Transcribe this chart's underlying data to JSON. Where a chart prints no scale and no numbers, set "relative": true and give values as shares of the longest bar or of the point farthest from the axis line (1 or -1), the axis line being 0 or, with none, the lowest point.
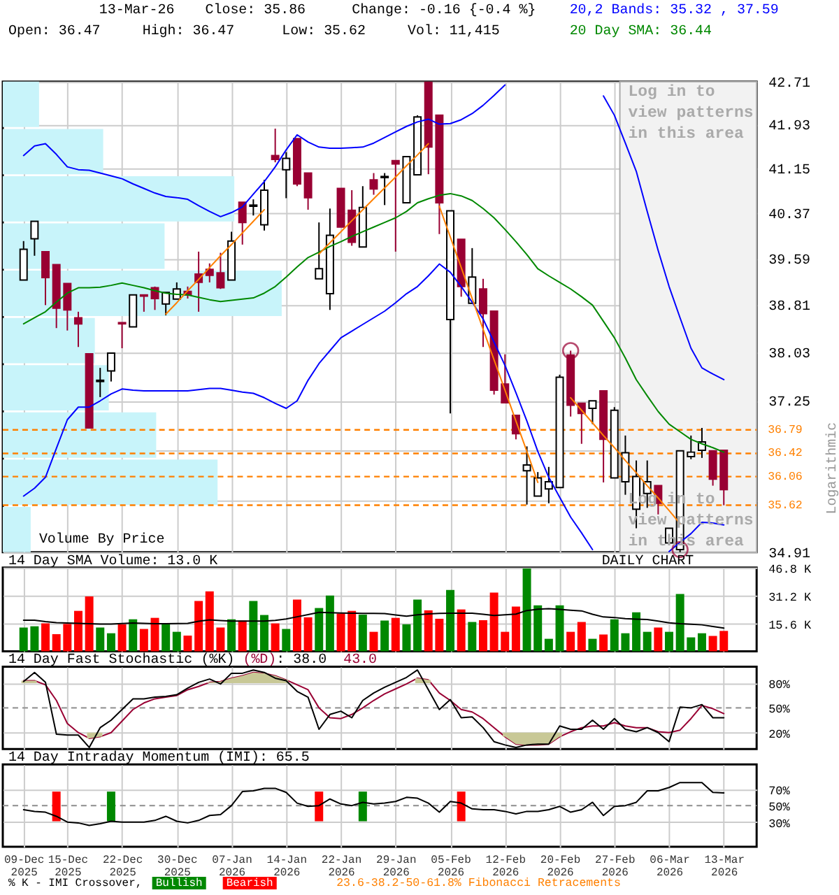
{
  "chart_data": [
    {
      "type": "candlestick",
      "title": "13-Mar-26",
      "ylabel": "Logarithmic",
      "categories": [
        "09-Dec 2025",
        null,
        null,
        null,
        "15-Dec 2025",
        null,
        null,
        null,
        null,
        "22-Dec 2025",
        null,
        null,
        null,
        null,
        "30-Dec 2025",
        null,
        null,
        null,
        null,
        "07-Jan 2026",
        null,
        null,
        null,
        null,
        "14-Jan 2026",
        null,
        null,
        null,
        null,
        "22-Jan 2026",
        null,
        null,
        null,
        null,
        "29-Jan 2026",
        null,
        null,
        null,
        null,
        "05-Feb 2026",
        null,
        null,
        null,
        null,
        "12-Feb 2026",
        null,
        null,
        null,
        null,
        "20-Feb 2026",
        null,
        null,
        null,
        null,
        "27-Feb 2026",
        null,
        null,
        null,
        null,
        "06-Mar 2026",
        null,
        null,
        null,
        null,
        "13-Mar 2026"
      ],
      "ohlc": [
        [
          39.23,
          39.89,
          39.23,
          39.75
        ],
        [
          39.93,
          40.23,
          39.64,
          40.23
        ],
        [
          39.71,
          39.71,
          38.81,
          39.27
        ],
        [
          39.49,
          39.49,
          38.43,
          38.76
        ],
        [
          39.17,
          39.17,
          38.39,
          38.73
        ],
        [
          38.6,
          38.7,
          38.12,
          38.5
        ],
        [
          38.01,
          38.01,
          36.82,
          36.82
        ],
        [
          37.56,
          37.78,
          37.31,
          37.58
        ],
        [
          37.73,
          38.02,
          37.56,
          38.02
        ],
        [
          38.52,
          38.52,
          38.1,
          38.5
        ],
        [
          38.45,
          38.98,
          38.45,
          38.98
        ],
        [
          38.98,
          38.98,
          38.7,
          38.96
        ],
        [
          39.1,
          39.12,
          38.73,
          38.92
        ],
        [
          38.83,
          39.02,
          38.64,
          39.02
        ],
        [
          38.91,
          39.19,
          38.91,
          39.08
        ],
        [
          39.04,
          39.12,
          38.92,
          38.98
        ],
        [
          39.33,
          39.71,
          38.7,
          39.19
        ],
        [
          39.41,
          39.51,
          39.19,
          39.31
        ],
        [
          39.35,
          39.69,
          39.08,
          39.1
        ],
        [
          39.23,
          40.05,
          39.23,
          39.89
        ],
        [
          40.56,
          40.56,
          39.83,
          40.21
        ],
        [
          40.49,
          40.61,
          40.33,
          40.51
        ],
        [
          40.17,
          40.95,
          40.07,
          40.77
        ],
        [
          41.38,
          41.86,
          41.26,
          41.31
        ],
        [
          41.13,
          41.44,
          40.63,
          41.33
        ],
        [
          41.68,
          41.68,
          40.84,
          40.88
        ],
        [
          41.07,
          41.07,
          40.43,
          40.64
        ],
        [
          39.25,
          40.21,
          39.25,
          39.42
        ],
        [
          39.0,
          40.45,
          38.73,
          39.99
        ],
        [
          40.8,
          40.8,
          40.13,
          40.13
        ],
        [
          40.42,
          40.77,
          39.81,
          39.87
        ],
        [
          39.79,
          40.84,
          39.79,
          40.47
        ],
        [
          40.95,
          41.07,
          40.69,
          40.79
        ],
        [
          40.99,
          41.07,
          40.51,
          41.01
        ],
        [
          41.29,
          41.29,
          39.71,
          41.23
        ],
        [
          40.55,
          41.36,
          40.55,
          41.36
        ],
        [
          41.04,
          42.1,
          41.04,
          42.07
        ],
        [
          42.7,
          42.71,
          41.05,
          41.53
        ],
        [
          42.1,
          42.1,
          40.01,
          40.55
        ],
        [
          38.57,
          40.41,
          37.05,
          40.41
        ],
        [
          39.92,
          39.92,
          38.95,
          39.12
        ],
        [
          38.84,
          39.77,
          38.84,
          39.28
        ],
        [
          39.08,
          39.25,
          38.12,
          38.67
        ],
        [
          38.71,
          38.71,
          37.35,
          37.42
        ],
        [
          37.52,
          38.0,
          37.21,
          37.22
        ],
        [
          37.02,
          37.02,
          36.64,
          36.73
        ],
        [
          36.15,
          36.53,
          35.63,
          36.24
        ],
        [
          35.76,
          36.13,
          35.76,
          36.04
        ],
        [
          35.87,
          36.21,
          35.65,
          35.98
        ],
        [
          35.89,
          37.67,
          35.89,
          37.63
        ],
        [
          37.99,
          38.06,
          37.0,
          37.18
        ],
        [
          37.21,
          37.21,
          36.57,
          37.05
        ],
        [
          37.13,
          37.25,
          36.88,
          37.25
        ],
        [
          37.41,
          37.41,
          35.97,
          36.64
        ],
        [
          36.04,
          37.15,
          36.04,
          37.1
        ],
        [
          35.98,
          36.7,
          35.78,
          36.43
        ],
        [
          35.56,
          36.31,
          35.27,
          36.06
        ],
        [
          35.8,
          36.31,
          35.58,
          35.98
        ],
        [
          35.92,
          35.92,
          35.48,
          35.65
        ],
        [
          35.05,
          35.27,
          35.05,
          35.27
        ],
        [
          34.95,
          36.46,
          34.91,
          36.46
        ],
        [
          36.37,
          36.7,
          36.33,
          36.44
        ],
        [
          36.47,
          36.82,
          36.35,
          36.6
        ],
        [
          36.46,
          36.46,
          35.92,
          36.02
        ],
        [
          36.47,
          36.47,
          35.62,
          35.86
        ]
      ],
      "colors": [
        "#ffffff",
        "#ffffff",
        "#990033",
        "#990033",
        "#990033",
        "#990033",
        "#990033",
        "#ffffff",
        "#ffffff",
        "#990033",
        "#ffffff",
        "#990033",
        "#990033",
        "#ffffff",
        "#ffffff",
        "#990033",
        "#990033",
        "#990033",
        "#990033",
        "#ffffff",
        "#990033",
        "#ffffff",
        "#ffffff",
        "#990033",
        "#ffffff",
        "#990033",
        "#990033",
        "#ffffff",
        "#ffffff",
        "#990033",
        "#990033",
        "#ffffff",
        "#990033",
        "#ffffff",
        "#990033",
        "#ffffff",
        "#ffffff",
        "#990033",
        "#990033",
        "#ffffff",
        "#990033",
        "#ffffff",
        "#990033",
        "#990033",
        "#990033",
        "#990033",
        "#ffffff",
        "#ffffff",
        "#ffffff",
        "#ffffff",
        "#990033",
        "#990033",
        "#ffffff",
        "#990033",
        "#ffffff",
        "#ffffff",
        "#ffffff",
        "#ffffff",
        "#990033",
        "#ffffff",
        "#ffffff",
        "#ffffff",
        "#ffffff",
        "#990033",
        "#990033"
      ],
      "series": [
        {
          "name": "20,2 Bands: 35.32 , 37.59",
          "type": "line",
          "color": "#0000ff",
          "values": [
            41.38,
            41.55,
            41.59,
            41.4,
            41.18,
            41.13,
            41.12,
            41.07,
            41.02,
            40.97,
            40.88,
            40.8,
            40.72,
            40.66,
            40.64,
            40.61,
            40.5,
            40.4,
            40.31,
            40.38,
            40.48,
            40.7,
            40.92,
            41.18,
            41.48,
            41.75,
            41.62,
            41.53,
            41.51,
            41.51,
            41.52,
            41.53,
            41.6,
            41.7,
            41.8,
            41.9,
            41.98,
            42.03,
            41.94,
            41.95,
            42.02,
            42.13,
            42.28,
            42.46,
            42.65,
            null,
            null,
            null,
            null,
            null,
            null,
            null,
            null,
            42.45,
            42.1,
            41.6,
            41.1,
            40.4,
            39.73,
            39.12,
            38.6,
            38.1,
            37.78,
            37.68,
            37.59
          ]
        },
        {
          "type": "line",
          "color": "#0000ff",
          "values": [
            35.76,
            35.88,
            36.05,
            36.5,
            36.95,
            37.15,
            37.15,
            37.25,
            37.36,
            37.44,
            37.42,
            37.41,
            37.41,
            37.41,
            37.41,
            37.41,
            37.43,
            37.45,
            37.45,
            37.42,
            37.39,
            37.37,
            37.3,
            37.21,
            37.13,
            37.25,
            37.58,
            37.85,
            38.06,
            38.27,
            38.38,
            38.49,
            38.6,
            38.71,
            38.85,
            39.0,
            39.12,
            39.3,
            39.5,
            39.36,
            39.12,
            38.86,
            38.58,
            38.2,
            37.82,
            37.38,
            36.93,
            36.45,
            36.05,
            35.74,
            35.44,
            35.2,
            34.95,
            null,
            null,
            null,
            null,
            null,
            null,
            34.92,
            35.06,
            35.19,
            35.36,
            35.35,
            35.32
          ]
        },
        {
          "name": "20 Day SMA: 36.44",
          "type": "line",
          "color": "#008800",
          "values": [
            38.5,
            38.6,
            38.7,
            38.86,
            39.01,
            39.1,
            39.1,
            39.11,
            39.14,
            39.18,
            39.14,
            39.1,
            39.05,
            39.01,
            38.99,
            38.98,
            38.94,
            38.9,
            38.87,
            38.89,
            38.91,
            38.93,
            39.01,
            39.12,
            39.28,
            39.45,
            39.61,
            39.7,
            39.8,
            39.88,
            39.97,
            40.05,
            40.13,
            40.21,
            40.29,
            40.4,
            40.55,
            40.62,
            40.68,
            40.71,
            40.67,
            40.59,
            40.45,
            40.29,
            40.09,
            39.88,
            39.66,
            39.42,
            39.3,
            39.19,
            39.08,
            38.95,
            38.81,
            38.54,
            38.27,
            37.94,
            37.59,
            37.33,
            37.08,
            36.88,
            36.76,
            36.64,
            36.57,
            36.51,
            36.44
          ]
        },
        {
          "type": "line",
          "color": "#ff8000",
          "values": [
            null,
            null,
            null,
            null,
            null,
            null,
            null,
            null,
            null,
            null,
            null,
            null,
            null,
            38.66,
            38.85,
            39.05,
            39.24,
            39.44,
            39.64,
            39.83,
            40.03,
            40.23,
            40.43,
            null,
            null,
            null,
            null,
            null,
            null,
            null,
            null,
            null,
            null,
            null,
            null,
            null,
            null,
            null,
            40.49,
            39.96,
            39.44,
            38.92,
            38.41,
            37.91,
            37.42,
            36.93,
            36.45,
            35.97,
            null,
            null,
            null,
            null,
            null,
            null,
            null,
            null,
            null,
            null,
            null,
            null,
            null,
            null,
            null,
            null,
            null
          ]
        },
        {
          "type": "line",
          "color": "#ff8000",
          "values": [
            null,
            null,
            null,
            null,
            null,
            null,
            null,
            null,
            null,
            null,
            null,
            null,
            null,
            null,
            null,
            null,
            null,
            null,
            null,
            null,
            null,
            null,
            null,
            null,
            null,
            null,
            null,
            39.67,
            39.86,
            40.05,
            40.24,
            40.43,
            40.62,
            40.81,
            41.0,
            41.2,
            41.39,
            41.59,
            null,
            null,
            null,
            null,
            null,
            null,
            null,
            null,
            null,
            null,
            null,
            null,
            37.3,
            37.1,
            36.9,
            36.7,
            36.51,
            36.31,
            36.12,
            35.92,
            35.73,
            35.54,
            35.34,
            null,
            null,
            null,
            null
          ]
        },
        {
          "type": "scatter",
          "marker": "circle",
          "color": "#990033",
          "values": [
            null,
            null,
            null,
            null,
            null,
            null,
            null,
            null,
            null,
            null,
            null,
            null,
            null,
            null,
            null,
            null,
            null,
            null,
            null,
            null,
            null,
            null,
            null,
            null,
            null,
            null,
            null,
            null,
            null,
            null,
            null,
            null,
            null,
            null,
            null,
            null,
            null,
            null,
            null,
            null,
            null,
            null,
            null,
            null,
            null,
            null,
            null,
            null,
            null,
            null,
            38.06,
            null,
            null,
            null,
            null,
            null,
            null,
            null,
            null,
            null,
            34.95,
            null,
            null,
            null,
            null
          ]
        }
      ],
      "ylim": [
        34.91,
        42.71
      ],
      "yticks": [
        34.91,
        {
          "value": 35.69,
          "label": null
        },
        {
          "value": 36.47,
          "label": null
        },
        37.25,
        38.03,
        38.81,
        39.59,
        40.37,
        41.15,
        41.93,
        42.71
      ],
      "log": true,
      "grid": true,
      "legend": "top right",
      "tick_labels": "y",
      "ref_lines": [
        {
          "axis": "y",
          "value": 36.79,
          "label": "36.79",
          "color": "#ff8000",
          "line_style": "dashed"
        },
        {
          "axis": "y",
          "value": 36.42,
          "label": "36.42",
          "color": "#ff8000",
          "line_style": "dashed"
        },
        {
          "axis": "y",
          "value": 36.06,
          "label": "36.06",
          "color": "#ff8000",
          "line_style": "dashed"
        },
        {
          "axis": "y",
          "value": 35.62,
          "label": "35.62",
          "color": "#ff8000",
          "line_style": "dashed"
        }
      ],
      "bands": [
        {
          "axis": "x",
          "from": "27-Feb 2026",
          "to": "13-Mar 2026",
          "label": "Log in to view patterns in this area",
          "color": "#f2f2f2"
        }
      ],
      "annotations": [
        "Close: 35.86",
        "Change: -0.16 {-0.4 %}",
        "Open: 36.47",
        "High: 36.47",
        "Low: 35.62",
        "Vol: 11,415",
        "Log in to view patterns in this area",
        "DAILY CHART",
        "23.6-38.2-50-61.8% Fibonacci Retracements"
      ]
    },
    {
      "type": "bar",
      "orientation": "horizontal",
      "relative": true,
      "title": "Volume By Price",
      "tick_labels": false,
      "categories": [
        null,
        null,
        null,
        null,
        null,
        null,
        null,
        null,
        null,
        null
      ],
      "values": [
        0.13,
        0.36,
        0.83,
        0.58,
        1,
        0.33,
        0.38,
        0.55,
        0.77,
        0.1
      ],
      "color": "#c8f4fa"
    },
    {
      "type": "bar",
      "title": "14 Day SMA Volume: 13.0 K",
      "categories": [
        "09-Dec 2025",
        null,
        null,
        null,
        "15-Dec 2025",
        null,
        null,
        null,
        null,
        "22-Dec 2025",
        null,
        null,
        null,
        null,
        "30-Dec 2025",
        null,
        null,
        null,
        null,
        "07-Jan 2026",
        null,
        null,
        null,
        null,
        "14-Jan 2026",
        null,
        null,
        null,
        null,
        "22-Jan 2026",
        null,
        null,
        null,
        null,
        "29-Jan 2026",
        null,
        null,
        null,
        null,
        "05-Feb 2026",
        null,
        null,
        null,
        null,
        "12-Feb 2026",
        null,
        null,
        null,
        null,
        "20-Feb 2026",
        null,
        null,
        null,
        null,
        "27-Feb 2026",
        null,
        null,
        null,
        null,
        "06-Mar 2026",
        null,
        null,
        null,
        null,
        "13-Mar 2026"
      ],
      "series": [
        {
          "type": "bar",
          "colors": [
            "#008800",
            "#008800",
            "#ff0000",
            "#ff0000",
            "#ff0000",
            "#ff0000",
            "#ff0000",
            "#008800",
            "#008800",
            "#ff0000",
            "#008800",
            "#ff0000",
            "#ff0000",
            "#008800",
            "#008800",
            "#ff0000",
            "#ff0000",
            "#ff0000",
            "#ff0000",
            "#008800",
            "#ff0000",
            "#008800",
            "#008800",
            "#ff0000",
            "#008800",
            "#ff0000",
            "#ff0000",
            "#008800",
            "#008800",
            "#ff0000",
            "#ff0000",
            "#008800",
            "#ff0000",
            "#008800",
            "#ff0000",
            "#008800",
            "#008800",
            "#ff0000",
            "#ff0000",
            "#008800",
            "#ff0000",
            "#008800",
            "#ff0000",
            "#ff0000",
            "#ff0000",
            "#ff0000",
            "#008800",
            "#008800",
            "#008800",
            "#008800",
            "#ff0000",
            "#ff0000",
            "#008800",
            "#ff0000",
            "#008800",
            "#008800",
            "#008800",
            "#008800",
            "#ff0000",
            "#008800",
            "#008800",
            "#008800",
            "#008800",
            "#ff0000",
            "#ff0000"
          ],
          "values": [
            13.3,
            14.0,
            15.6,
            9.6,
            15.3,
            22.6,
            30.7,
            13.3,
            10.1,
            15.1,
            17.9,
            12.5,
            18.7,
            15.3,
            10.9,
            8.8,
            28.1,
            33.5,
            13.3,
            17.9,
            17.2,
            28.1,
            20.3,
            15.6,
            12.5,
            28.9,
            19.0,
            24.2,
            31.2,
            21.1,
            22.6,
            20.5,
            10.9,
            17.2,
            18.7,
            15.1,
            28.9,
            22.9,
            18.2,
            34.3,
            23.4,
            16.4,
            17.4,
            32.8,
            10.9,
            25.0,
            46.3,
            25.7,
            7.0,
            25.7,
            10.9,
            16.4,
            7.0,
            9.4,
            17.9,
            10.1,
            21.8,
            10.9,
            13.3,
            10.9,
            32.0,
            7.8,
            10.1,
            8.6,
            11.4
          ]
        },
        {
          "type": "line",
          "color": "#000000",
          "values": [
            17.4,
            17.4,
            16.6,
            16.0,
            15.8,
            15.6,
            15.4,
            15.2,
            15.2,
            15.5,
            15.8,
            15.6,
            15.4,
            15.4,
            15.5,
            15.6,
            16.8,
            17.6,
            17.2,
            16.9,
            16.9,
            16.9,
            16.9,
            17.3,
            18.1,
            19.3,
            20.5,
            21.8,
            21.6,
            21.4,
            21.3,
            21.2,
            21.2,
            21.1,
            20.3,
            19.6,
            20.4,
            20.9,
            21.2,
            21.3,
            21.3,
            21.3,
            20.7,
            20.0,
            20.4,
            20.8,
            22.8,
            23.5,
            23.8,
            23.4,
            23.0,
            22.6,
            20.7,
            19.2,
            18.9,
            18.3,
            18.0,
            17.8,
            16.9,
            15.9,
            15.4,
            15.1,
            14.8,
            13.9,
            13.0
          ]
        }
      ],
      "ylim": [
        0,
        46.8
      ],
      "yticks": [
        {
          "value": 15.6,
          "label": "15.6 K"
        },
        {
          "value": 31.2,
          "label": "31.2 K"
        },
        {
          "value": 46.8,
          "label": "46.8 K"
        }
      ],
      "grid": true,
      "tick_labels": "y"
    },
    {
      "type": "line",
      "title": "14 Day Fast Stochastic",
      "categories": [
        "09-Dec 2025",
        null,
        null,
        null,
        "15-Dec 2025",
        null,
        null,
        null,
        null,
        "22-Dec 2025",
        null,
        null,
        null,
        null,
        "30-Dec 2025",
        null,
        null,
        null,
        null,
        "07-Jan 2026",
        null,
        null,
        null,
        null,
        "14-Jan 2026",
        null,
        null,
        null,
        null,
        "22-Jan 2026",
        null,
        null,
        null,
        null,
        "29-Jan 2026",
        null,
        null,
        null,
        null,
        "05-Feb 2026",
        null,
        null,
        null,
        null,
        "12-Feb 2026",
        null,
        null,
        null,
        null,
        "20-Feb 2026",
        null,
        null,
        null,
        null,
        "27-Feb 2026",
        null,
        null,
        null,
        null,
        "06-Mar 2026",
        null,
        null,
        null,
        null,
        "13-Mar 2026"
      ],
      "series": [
        {
          "name": "(%K)",
          "type": "line",
          "color": "#000000",
          "values": [
            82,
            93,
            81,
            18,
            17,
            17,
            2,
            26,
            35,
            48,
            61,
            61,
            63,
            64,
            66,
            74,
            81,
            85,
            79,
            92,
            92,
            96,
            93,
            86,
            83,
            70,
            63,
            24,
            42,
            46,
            38,
            59,
            68,
            75,
            81,
            87,
            96,
            72,
            48,
            60,
            38,
            39,
            26,
            9,
            5,
            2,
            5,
            6,
            6,
            28,
            24,
            24,
            35,
            24,
            37,
            24,
            21,
            26,
            20,
            9,
            51,
            50,
            54,
            38,
            38
          ]
        },
        {
          "name": "(%D)",
          "type": "line",
          "color": "#990033",
          "values": [
            83,
            83,
            78,
            59,
            31,
            20,
            13,
            15,
            20,
            34,
            48,
            56,
            61,
            63,
            65,
            72,
            76,
            81,
            82,
            86,
            89,
            93,
            92,
            89,
            84,
            78,
            72,
            50,
            38,
            37,
            42,
            50,
            59,
            67,
            73,
            79,
            86,
            84,
            68,
            59,
            48,
            45,
            37,
            26,
            15,
            6,
            5,
            5,
            6,
            15,
            21,
            26,
            28,
            28,
            32,
            28,
            26,
            26,
            21,
            20,
            23,
            37,
            53,
            49,
            43
          ],
          "lower": [
            80,
            80,
            null,
            null,
            null,
            null,
            13,
            15,
            null,
            null,
            null,
            null,
            null,
            null,
            null,
            null,
            null,
            80,
            80,
            80,
            80,
            80,
            80,
            80,
            80,
            null,
            null,
            null,
            null,
            null,
            null,
            null,
            null,
            null,
            null,
            null,
            80,
            80,
            null,
            null,
            null,
            null,
            null,
            null,
            15,
            6,
            5,
            5,
            6,
            15,
            null,
            null,
            null,
            null,
            null,
            null,
            null,
            null,
            null,
            null,
            null,
            null,
            null,
            null,
            null
          ],
          "upper": [
            83,
            83,
            null,
            null,
            null,
            null,
            20,
            20,
            null,
            null,
            null,
            null,
            null,
            null,
            null,
            null,
            null,
            81,
            82,
            86,
            89,
            93,
            92,
            89,
            84,
            null,
            null,
            null,
            null,
            null,
            null,
            null,
            null,
            null,
            null,
            null,
            86,
            84,
            null,
            null,
            null,
            null,
            null,
            null,
            20,
            20,
            20,
            20,
            20,
            20,
            null,
            null,
            null,
            null,
            null,
            null,
            null,
            null,
            null,
            null,
            null,
            null,
            null,
            null,
            null
          ]
        }
      ],
      "annotations": [
        ": 38.0",
        "43.0"
      ],
      "ylim": [
        0,
        100
      ],
      "yticks": [
        {
          "value": 20,
          "label": "20%"
        },
        {
          "value": 50,
          "label": "50%"
        },
        {
          "value": 80,
          "label": "80%"
        }
      ],
      "ref_lines": [
        {
          "axis": "y",
          "value": 50,
          "color": "#999999",
          "line_style": "dashed"
        }
      ],
      "grid": true,
      "legend": "top left",
      "tick_labels": "y"
    },
    {
      "type": "line",
      "title": "14 Day Intraday Momentum (IMI): 65.5",
      "categories": [
        "09-Dec 2025",
        null,
        null,
        null,
        "15-Dec 2025",
        null,
        null,
        null,
        null,
        "22-Dec 2025",
        null,
        null,
        null,
        null,
        "30-Dec 2025",
        null,
        null,
        null,
        null,
        "07-Jan 2026",
        null,
        null,
        null,
        null,
        "14-Jan 2026",
        null,
        null,
        null,
        null,
        "22-Jan 2026",
        null,
        null,
        null,
        null,
        "29-Jan 2026",
        null,
        null,
        null,
        null,
        "05-Feb 2026",
        null,
        null,
        null,
        null,
        "12-Feb 2026",
        null,
        null,
        null,
        null,
        "20-Feb 2026",
        null,
        null,
        null,
        null,
        "27-Feb 2026",
        null,
        null,
        null,
        null,
        "06-Mar 2026",
        null,
        null,
        null,
        null,
        "13-Mar 2026"
      ],
      "series": [
        {
          "type": "line",
          "color": "#000000",
          "values": [
            45,
            43,
            42,
            37,
            30,
            29,
            26,
            28,
            31,
            30,
            30,
            30,
            32,
            37,
            31,
            29,
            32,
            38,
            39,
            50,
            67,
            68,
            71,
            71,
            66,
            53,
            49,
            50,
            58,
            52,
            50,
            54,
            52,
            53,
            55,
            60,
            59,
            53,
            42,
            55,
            53,
            46,
            45,
            45,
            43,
            40,
            43,
            43,
            45,
            49,
            42,
            45,
            54,
            38,
            49,
            50,
            54,
            68,
            68,
            72,
            78,
            78,
            78,
            66,
            65.5
          ]
        },
        {
          "name": "Bullish",
          "type": "bar",
          "color": "#008800",
          "base": [
            null,
            null,
            null,
            null,
            null,
            null,
            null,
            null,
            31,
            null,
            null,
            null,
            null,
            null,
            null,
            null,
            null,
            null,
            null,
            null,
            null,
            null,
            null,
            null,
            null,
            null,
            null,
            null,
            null,
            null,
            null,
            31,
            null,
            null,
            null,
            null,
            null,
            null,
            null,
            null,
            null,
            null,
            null,
            null,
            null,
            null,
            null,
            null,
            null,
            null,
            null,
            null,
            null,
            null,
            null,
            null,
            null,
            null,
            null,
            null,
            null,
            null,
            null,
            null,
            null
          ],
          "values": [
            null,
            null,
            null,
            null,
            null,
            null,
            null,
            null,
            36,
            null,
            null,
            null,
            null,
            null,
            null,
            null,
            null,
            null,
            null,
            null,
            null,
            null,
            null,
            null,
            null,
            null,
            null,
            null,
            null,
            null,
            null,
            36,
            null,
            null,
            null,
            null,
            null,
            null,
            null,
            null,
            null,
            null,
            null,
            null,
            null,
            null,
            null,
            null,
            null,
            null,
            null,
            null,
            null,
            null,
            null,
            null,
            null,
            null,
            null,
            null,
            null,
            null,
            null,
            null,
            null
          ]
        },
        {
          "name": "Bearish",
          "type": "bar",
          "color": "#ff0000",
          "base": [
            null,
            null,
            null,
            31,
            null,
            null,
            null,
            null,
            null,
            null,
            null,
            null,
            null,
            null,
            null,
            null,
            null,
            null,
            null,
            null,
            null,
            null,
            null,
            null,
            null,
            null,
            null,
            31,
            null,
            null,
            null,
            null,
            null,
            null,
            null,
            null,
            null,
            null,
            null,
            null,
            31,
            null,
            null,
            null,
            null,
            null,
            null,
            null,
            null,
            null,
            null,
            null,
            null,
            null,
            null,
            null,
            null,
            null,
            null,
            null,
            null,
            null,
            null,
            null,
            null
          ],
          "values": [
            null,
            null,
            null,
            36,
            null,
            null,
            null,
            null,
            null,
            null,
            null,
            null,
            null,
            null,
            null,
            null,
            null,
            null,
            null,
            null,
            null,
            null,
            null,
            null,
            null,
            null,
            null,
            36,
            null,
            null,
            null,
            null,
            null,
            null,
            null,
            null,
            null,
            null,
            null,
            null,
            36,
            null,
            null,
            null,
            null,
            null,
            null,
            null,
            null,
            null,
            null,
            null,
            null,
            null,
            null,
            null,
            null,
            null,
            null,
            null,
            null,
            null,
            null,
            null,
            null
          ]
        }
      ],
      "ylim": [
        0,
        100
      ],
      "yticks": [
        {
          "value": 30,
          "label": "30%"
        },
        {
          "value": 50,
          "label": "50%"
        },
        {
          "value": 70,
          "label": "70%"
        }
      ],
      "ref_lines": [
        {
          "axis": "y",
          "value": 50,
          "color": "#999999",
          "line_style": "dashed"
        }
      ],
      "grid": true,
      "legend": "bottom",
      "legend_title": "% K - IMI Crossover,"
    }
  ]
}
